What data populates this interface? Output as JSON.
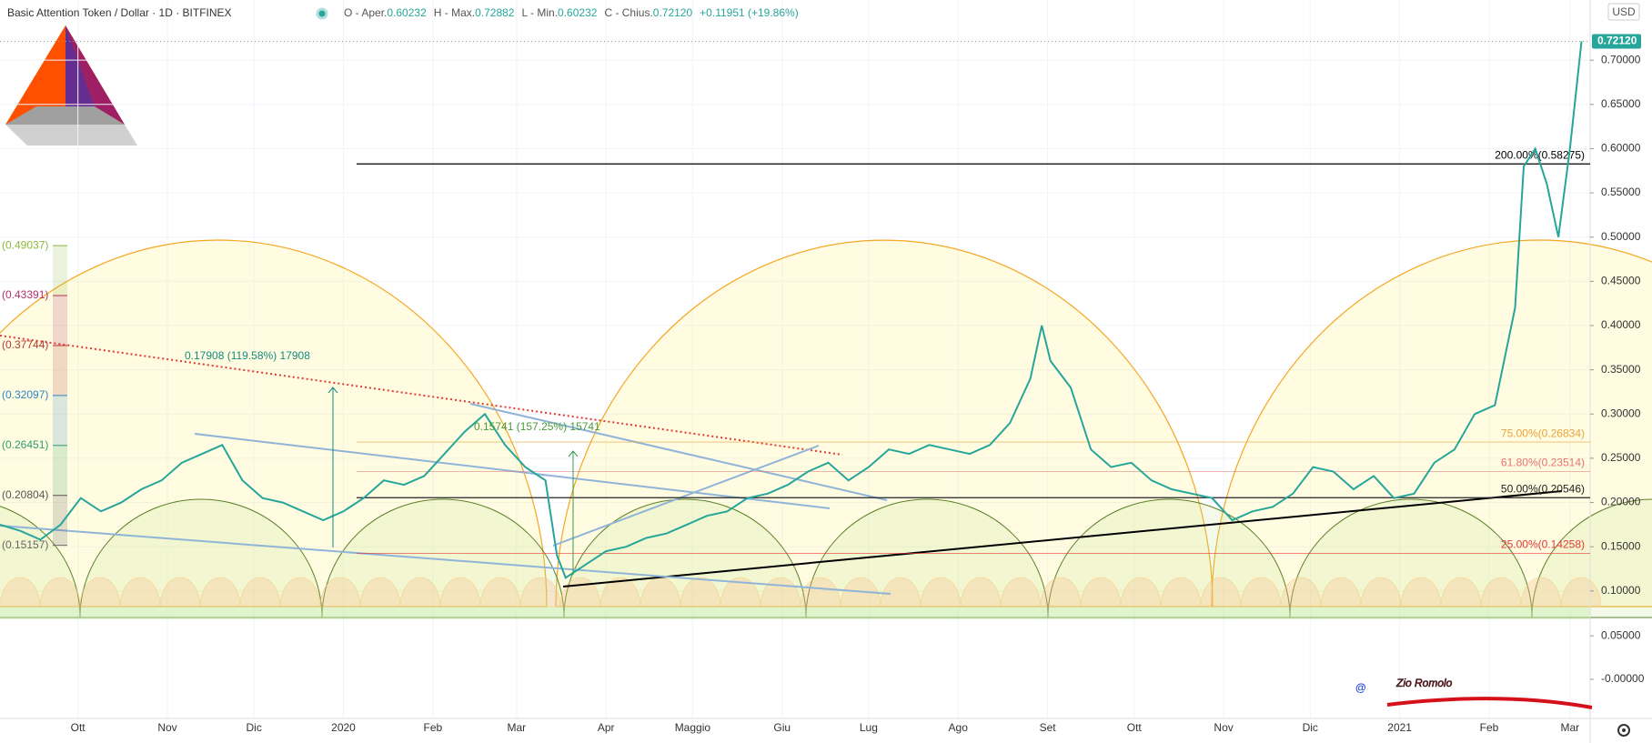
{
  "chart_data": {
    "type": "line",
    "title": "Basic Attention Token / Dollar · 1D · BITFINEX",
    "ohlc": [
      {
        "name": "O - Aper.",
        "value": "0.60232"
      },
      {
        "name": "H - Max.",
        "value": "0.72882"
      },
      {
        "name": "L - Min.",
        "value": "0.60232"
      },
      {
        "name": "C - Chius.",
        "value": "0.72120"
      }
    ],
    "change": "+0.11951 (+19.86%)",
    "currency": "USD",
    "color": "#26a69a",
    "x": [
      3,
      10,
      17,
      24,
      31,
      38,
      45,
      52,
      59,
      66,
      73,
      80,
      87,
      94,
      101,
      108,
      115,
      122,
      129,
      136,
      143,
      150,
      157,
      164,
      171,
      178,
      185,
      192,
      196,
      199,
      206,
      213,
      220,
      227,
      234,
      241,
      248,
      255,
      262,
      269,
      276,
      283,
      290,
      297,
      304,
      311,
      318,
      325,
      332,
      339,
      346,
      353,
      360,
      364,
      367,
      374,
      381,
      388,
      395,
      402,
      409,
      416,
      423,
      430,
      437,
      444,
      451,
      458,
      465,
      472,
      479,
      486,
      493,
      500,
      507,
      514,
      521,
      528,
      531,
      535,
      539,
      543,
      547,
      551
    ],
    "values": [
      0.175,
      0.168,
      0.158,
      0.175,
      0.205,
      0.19,
      0.2,
      0.215,
      0.225,
      0.245,
      0.255,
      0.265,
      0.225,
      0.205,
      0.2,
      0.19,
      0.18,
      0.19,
      0.205,
      0.225,
      0.22,
      0.23,
      0.255,
      0.28,
      0.3,
      0.265,
      0.24,
      0.225,
      0.14,
      0.115,
      0.13,
      0.145,
      0.15,
      0.16,
      0.165,
      0.175,
      0.185,
      0.19,
      0.205,
      0.21,
      0.22,
      0.235,
      0.245,
      0.225,
      0.24,
      0.26,
      0.255,
      0.265,
      0.26,
      0.255,
      0.265,
      0.29,
      0.34,
      0.4,
      0.36,
      0.33,
      0.26,
      0.24,
      0.245,
      0.225,
      0.215,
      0.21,
      0.205,
      0.18,
      0.19,
      0.195,
      0.21,
      0.24,
      0.235,
      0.215,
      0.23,
      0.205,
      0.21,
      0.245,
      0.26,
      0.3,
      0.31,
      0.42,
      0.58,
      0.6,
      0.56,
      0.5,
      0.6,
      0.7212
    ],
    "last_price": {
      "value": 0.7212,
      "label": "0.72120"
    },
    "xlim": [
      3,
      554
    ],
    "xticks": [
      {
        "value": 30,
        "label": "Ott"
      },
      {
        "value": 61,
        "label": "Nov"
      },
      {
        "value": 91,
        "label": "Dic"
      },
      {
        "value": 122,
        "label": "2020"
      },
      {
        "value": 153,
        "label": "Feb"
      },
      {
        "value": 182,
        "label": "Mar"
      },
      {
        "value": 213,
        "label": "Apr"
      },
      {
        "value": 243,
        "label": "Maggio"
      },
      {
        "value": 274,
        "label": "Giu"
      },
      {
        "value": 304,
        "label": "Lug"
      },
      {
        "value": 335,
        "label": "Ago"
      },
      {
        "value": 366,
        "label": "Set"
      },
      {
        "value": 396,
        "label": "Ott"
      },
      {
        "value": 427,
        "label": "Nov"
      },
      {
        "value": 457,
        "label": "Dic"
      },
      {
        "value": 488,
        "label": "2021"
      },
      {
        "value": 519,
        "label": "Feb"
      },
      {
        "value": 547,
        "label": "Mar"
      }
    ],
    "ylim": [
      0.069,
      0.768
    ],
    "yticks": [
      {
        "value": 0.7,
        "label": "0.70000"
      },
      {
        "value": 0.65,
        "label": "0.65000"
      },
      {
        "value": 0.6,
        "label": "0.60000"
      },
      {
        "value": 0.55,
        "label": "0.55000"
      },
      {
        "value": 0.5,
        "label": "0.50000"
      },
      {
        "value": 0.45,
        "label": "0.45000"
      },
      {
        "value": 0.4,
        "label": "0.40000"
      },
      {
        "value": 0.35,
        "label": "0.35000"
      },
      {
        "value": 0.3,
        "label": "0.30000"
      },
      {
        "value": 0.25,
        "label": "0.25000"
      },
      {
        "value": 0.2,
        "label": "0.20000"
      },
      {
        "value": 0.15,
        "label": "0.15000"
      },
      {
        "value": 0.1,
        "label": "0.10000"
      }
    ],
    "volume_ylim": [
      -0.045,
      0.07
    ],
    "volume_yticks": [
      {
        "value": 0.05,
        "label": "0.05000"
      },
      {
        "value": 0,
        "label": "-0.00000"
      }
    ],
    "fib_levels": [
      {
        "value": 0.58275,
        "label": "200.00%(0.58275)",
        "color": "#000000"
      },
      {
        "value": 0.26834,
        "label": "75.00%(0.26834)",
        "color": "#e8a33d"
      },
      {
        "value": 0.23514,
        "label": "61.80%(0.23514)",
        "color": "#e57373"
      },
      {
        "value": 0.20546,
        "label": "50.00%(0.20546)",
        "color": "#222222"
      },
      {
        "value": 0.14258,
        "label": "25.00%(0.14258)",
        "color": "#e53935"
      }
    ],
    "left_levels": [
      {
        "value": 0.49037,
        "label": "(0.49037)",
        "color": "#8cb83a"
      },
      {
        "value": 0.43391,
        "label": "(0.43391)",
        "color": "#b0306a"
      },
      {
        "value": 0.37744,
        "label": "(0.37744)",
        "color": "#b33a2e"
      },
      {
        "value": 0.32097,
        "label": "(0.32097)",
        "color": "#2e86c1"
      },
      {
        "value": 0.26451,
        "label": "(0.26451)",
        "color": "#2e9e6e"
      },
      {
        "value": 0.20804,
        "label": "(0.20804)",
        "color": "#555555"
      },
      {
        "value": 0.15157,
        "label": "(0.15157)",
        "color": "#666666"
      }
    ],
    "annotations": [
      "0.17908 (119.58%) 17908",
      "0.15741 (157.25%) 15741"
    ],
    "watermark": [
      "@",
      "Zio Romolo"
    ]
  }
}
